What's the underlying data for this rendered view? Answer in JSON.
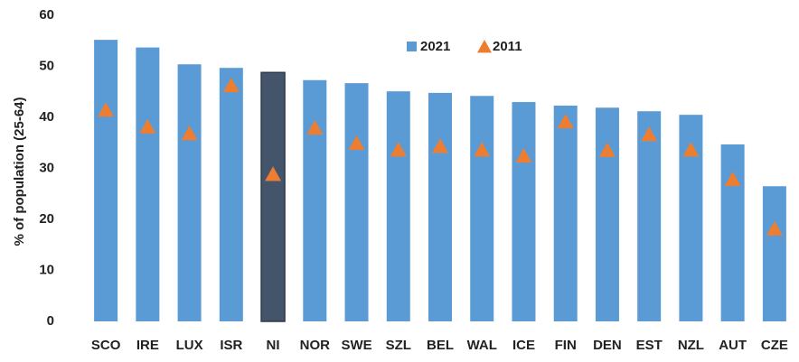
{
  "chart_data": {
    "type": "bar",
    "y_label": "% of population (25-64)",
    "categories": [
      "SCO",
      "IRE",
      "LUX",
      "ISR",
      "NI",
      "NOR",
      "SWE",
      "SZL",
      "BEL",
      "WAL",
      "ICE",
      "FIN",
      "DEN",
      "EST",
      "NZL",
      "AUT",
      "CZE"
    ],
    "series": [
      {
        "name": "2021",
        "type": "bar",
        "color": "#5b9bd5",
        "colors": [
          "#5b9bd5",
          "#5b9bd5",
          "#5b9bd5",
          "#5b9bd5",
          "#44546a",
          "#5b9bd5",
          "#5b9bd5",
          "#5b9bd5",
          "#5b9bd5",
          "#5b9bd5",
          "#5b9bd5",
          "#5b9bd5",
          "#5b9bd5",
          "#5b9bd5",
          "#5b9bd5",
          "#5b9bd5",
          "#5b9bd5"
        ],
        "values": [
          55.2,
          53.7,
          50.4,
          49.7,
          48.8,
          47.3,
          46.7,
          45.1,
          44.8,
          44.2,
          43.0,
          42.3,
          41.9,
          41.2,
          40.5,
          34.7,
          26.5
        ]
      },
      {
        "name": "2011",
        "type": "triangle",
        "color": "#ed7d31",
        "values": [
          41.4,
          38.1,
          36.8,
          46.2,
          28.8,
          37.9,
          34.9,
          33.6,
          34.3,
          33.6,
          32.4,
          39.1,
          33.5,
          36.6,
          33.6,
          27.8,
          18.1
        ]
      }
    ],
    "ylim": [
      0,
      60
    ],
    "yticks": [
      0,
      10,
      20,
      30,
      40,
      50,
      60
    ],
    "grid": false,
    "legend": "top"
  }
}
